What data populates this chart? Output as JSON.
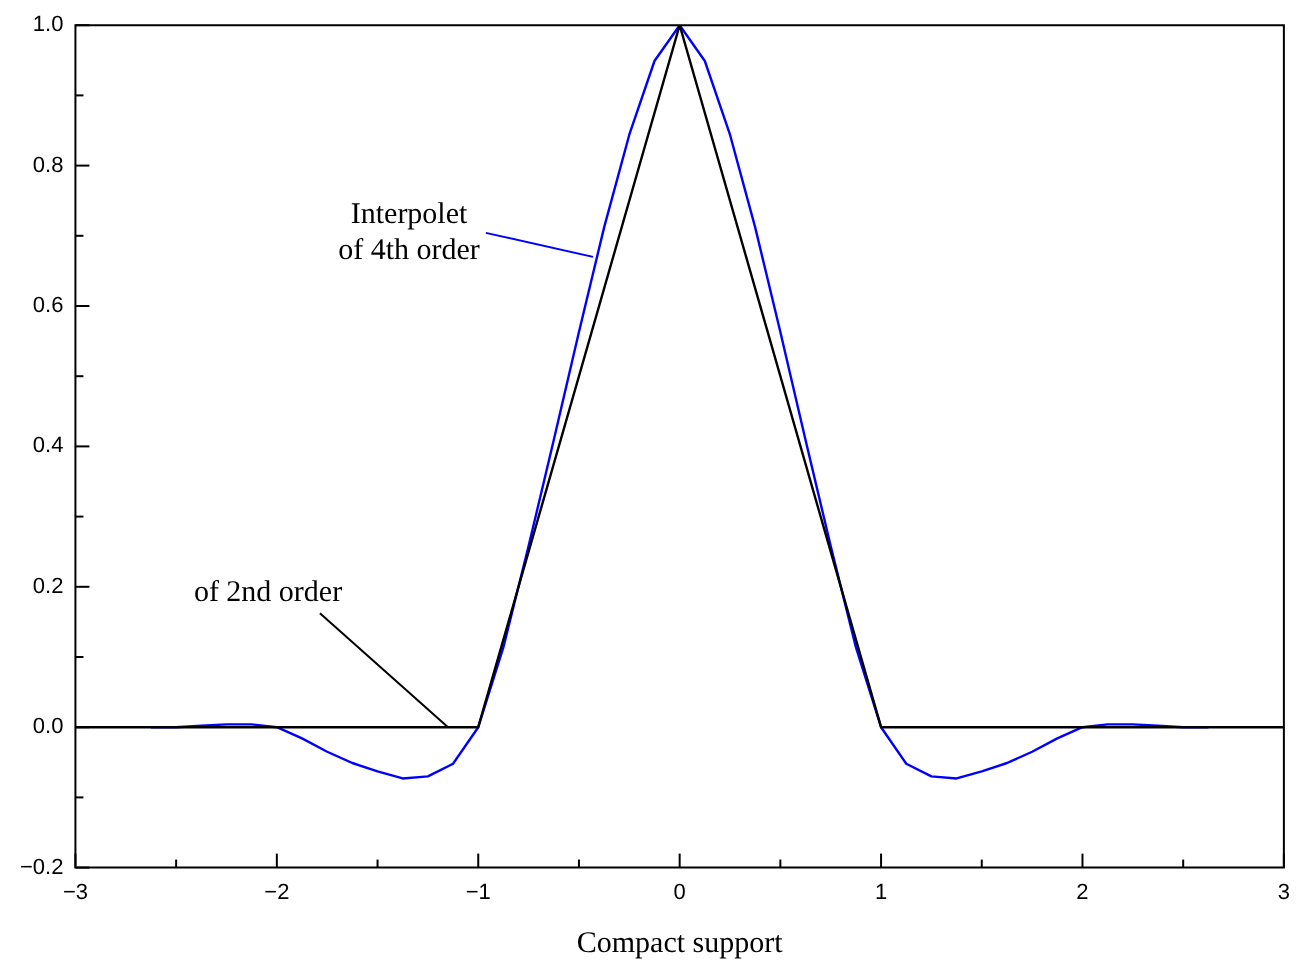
{
  "chart_data": {
    "type": "line",
    "xlabel": "Compact support",
    "xlim": [
      -3,
      3
    ],
    "ylim": [
      -0.2,
      1.0
    ],
    "xticks": [
      {
        "value": -3,
        "label": "−3"
      },
      {
        "value": -2.5,
        "label": null
      },
      {
        "value": -2,
        "label": "−2"
      },
      {
        "value": -1.5,
        "label": null
      },
      {
        "value": -1,
        "label": "−1"
      },
      {
        "value": -0.5,
        "label": null
      },
      {
        "value": 0,
        "label": "0"
      },
      {
        "value": 0.5,
        "label": null
      },
      {
        "value": 1,
        "label": "1"
      },
      {
        "value": 1.5,
        "label": null
      },
      {
        "value": 2,
        "label": "2"
      },
      {
        "value": 2.5,
        "label": null
      },
      {
        "value": 3,
        "label": "3"
      }
    ],
    "yticks": [
      {
        "value": -0.2,
        "label": "−0.2"
      },
      {
        "value": -0.1,
        "label": null
      },
      {
        "value": 0,
        "label": "0.0"
      },
      {
        "value": 0.1,
        "label": null
      },
      {
        "value": 0.2,
        "label": "0.2"
      },
      {
        "value": 0.3,
        "label": null
      },
      {
        "value": 0.4,
        "label": "0.4"
      },
      {
        "value": 0.5,
        "label": null
      },
      {
        "value": 0.6,
        "label": "0.6"
      },
      {
        "value": 0.7,
        "label": null
      },
      {
        "value": 0.8,
        "label": "0.8"
      },
      {
        "value": 0.9,
        "label": null
      },
      {
        "value": 1.0,
        "label": "1.0"
      }
    ],
    "grid": false,
    "legend": false,
    "marker": "none",
    "line_style": "solid",
    "series": [
      {
        "color": "#000000",
        "x": [
          -3,
          -1,
          0,
          1,
          3
        ],
        "values": [
          0,
          0,
          1,
          0,
          0
        ]
      },
      {
        "color": "#0000ff",
        "x": [
          -2.625,
          -2.5,
          -2.375,
          -2.25,
          -2.125,
          -2,
          -1.875,
          -1.75,
          -1.625,
          -1.5,
          -1.375,
          -1.25,
          -1.125,
          -1,
          -0.875,
          -0.75,
          -0.625,
          -0.5,
          -0.375,
          -0.25,
          -0.125,
          0,
          0.125,
          0.25,
          0.375,
          0.5,
          0.625,
          0.75,
          0.875,
          1,
          1.125,
          1.25,
          1.375,
          1.5,
          1.625,
          1.75,
          1.875,
          2,
          2.125,
          2.25,
          2.375,
          2.5,
          2.625
        ],
        "values": [
          0,
          0,
          0.002,
          0.004,
          0.004,
          0,
          -0.016,
          -0.035,
          -0.051,
          -0.063,
          -0.073,
          -0.07,
          -0.052,
          0,
          0.114,
          0.258,
          0.409,
          0.563,
          0.712,
          0.844,
          0.949,
          1,
          0.949,
          0.844,
          0.712,
          0.563,
          0.409,
          0.258,
          0.114,
          0,
          -0.052,
          -0.07,
          -0.073,
          -0.063,
          -0.051,
          -0.035,
          -0.016,
          0,
          0.004,
          0.004,
          0.002,
          0,
          0
        ]
      }
    ],
    "annotations": [
      {
        "text": "Interpolet\nof 4th order",
        "x": -0.43,
        "y": 0.67
      },
      {
        "text": "of 2nd order",
        "x": -1.15,
        "y": 0
      }
    ]
  }
}
